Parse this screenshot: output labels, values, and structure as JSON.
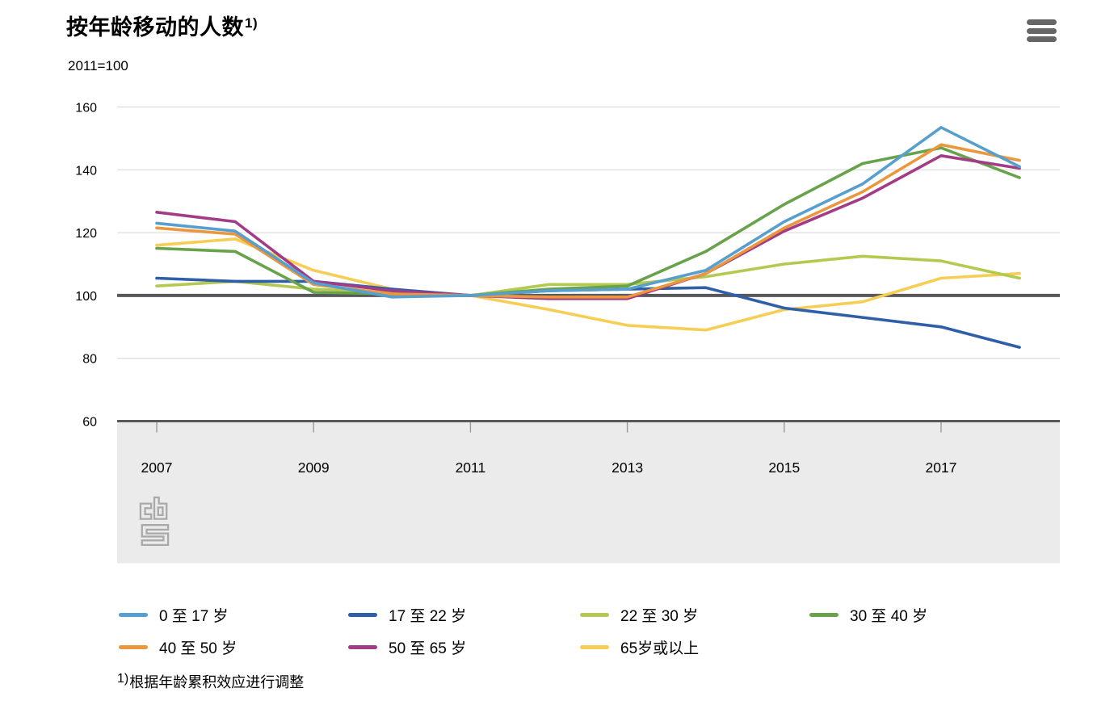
{
  "header": {
    "title": "按年龄移动的人数",
    "title_footnote_marker": "1)",
    "subtitle": "2011=100"
  },
  "toolbar": {
    "menu_icon": "hamburger-menu"
  },
  "chart_data": {
    "type": "line",
    "title": "按年龄移动的人数 1)",
    "unit_label": "2011=100",
    "x": [
      2007,
      2008,
      2009,
      2010,
      2011,
      2012,
      2013,
      2014,
      2015,
      2016,
      2017,
      2018
    ],
    "x_tick_years": [
      2007,
      2009,
      2011,
      2013,
      2015,
      2017
    ],
    "y_ticks": [
      60,
      80,
      100,
      120,
      140,
      160
    ],
    "ylim": [
      60,
      166
    ],
    "baseline": 100,
    "grid": true,
    "legend_position": "bottom",
    "series": [
      {
        "name": "0 至 17 岁",
        "color": "#569fce",
        "values": [
          123,
          120.5,
          104,
          99.5,
          100,
          101.5,
          102,
          108,
          123.5,
          135.5,
          153.5,
          141
        ]
      },
      {
        "name": "17 至 22 岁",
        "color": "#2f5fa8",
        "values": [
          105.5,
          104.5,
          104.5,
          102,
          100,
          101.5,
          102,
          102.5,
          96,
          93,
          90,
          83.5
        ]
      },
      {
        "name": "22 至 30 岁",
        "color": "#b3ca51",
        "values": [
          103,
          104.5,
          102,
          101,
          100,
          103.5,
          103.5,
          106,
          110,
          112.5,
          111,
          105.5
        ]
      },
      {
        "name": "30 至 40 岁",
        "color": "#68a24b",
        "values": [
          115,
          114,
          101,
          100.5,
          100,
          102,
          103,
          114,
          129,
          142,
          147,
          137.5
        ]
      },
      {
        "name": "40 至 50 岁",
        "color": "#ea973d",
        "values": [
          121.5,
          119.5,
          103.5,
          100.5,
          100,
          99.5,
          99.5,
          107,
          121.5,
          133,
          148,
          143
        ]
      },
      {
        "name": "50 至 65 岁",
        "color": "#a23c87",
        "values": [
          126.5,
          123.5,
          104.5,
          101.5,
          100,
          99,
          99,
          107,
          120.5,
          131,
          144.5,
          140.5
        ]
      },
      {
        "name": "65岁或以上",
        "color": "#f6ce55",
        "values": [
          116,
          118,
          108,
          102,
          100,
          95.5,
          90.5,
          89,
          95.5,
          98,
          105.5,
          107
        ]
      }
    ]
  },
  "footnote": {
    "marker": "1)",
    "text": "根据年龄累积效应进行调整"
  },
  "branding": {
    "watermark": "cbs-logo"
  },
  "colors": {
    "axis": "#58585a",
    "grid": "#d6d6d6",
    "band": "#ebebeb",
    "tick": "#9b9b9b",
    "menu_icon": "#666666",
    "watermark": "#a9a9a9",
    "text": "#000000"
  }
}
